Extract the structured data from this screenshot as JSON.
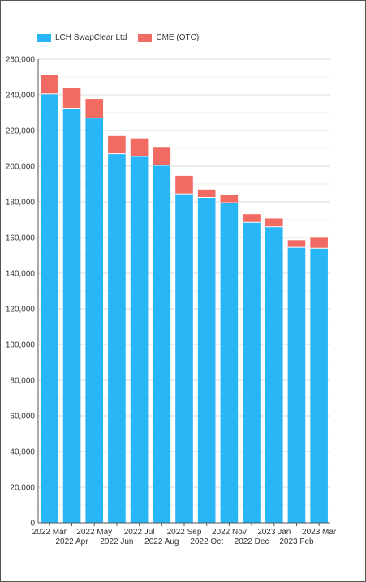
{
  "colors": {
    "lch": "#29b6f6",
    "cme": "#f26b63",
    "grid": "#d9d9d9",
    "axis": "#555555"
  },
  "chart_data": {
    "type": "bar",
    "stacked": true,
    "categories": [
      "2022 Mar",
      "2022 Apr",
      "2022 May",
      "2022 Jun",
      "2022 Jul",
      "2022 Aug",
      "2022 Sep",
      "2022 Oct",
      "2022 Nov",
      "2022 Dec",
      "2023 Jan",
      "2023 Feb",
      "2023 Mar"
    ],
    "series": [
      {
        "name": "LCH SwapClear Ltd",
        "values": [
          240500,
          232500,
          227000,
          207000,
          205500,
          200500,
          184500,
          182500,
          179500,
          168500,
          166000,
          154500,
          154000
        ]
      },
      {
        "name": "CME (OTC)",
        "values": [
          10700,
          11300,
          10700,
          9900,
          10100,
          10300,
          10100,
          4400,
          4600,
          4600,
          4700,
          4000,
          6300
        ]
      }
    ],
    "yticks": [
      "0",
      "20,000",
      "40,000",
      "60,000",
      "80,000",
      "100,000",
      "120,000",
      "140,000",
      "160,000",
      "180,000",
      "200,000",
      "220,000",
      "240,000",
      "260,000"
    ],
    "ylim": [
      0,
      260000
    ],
    "grid": true,
    "legend_position": "top-left"
  }
}
